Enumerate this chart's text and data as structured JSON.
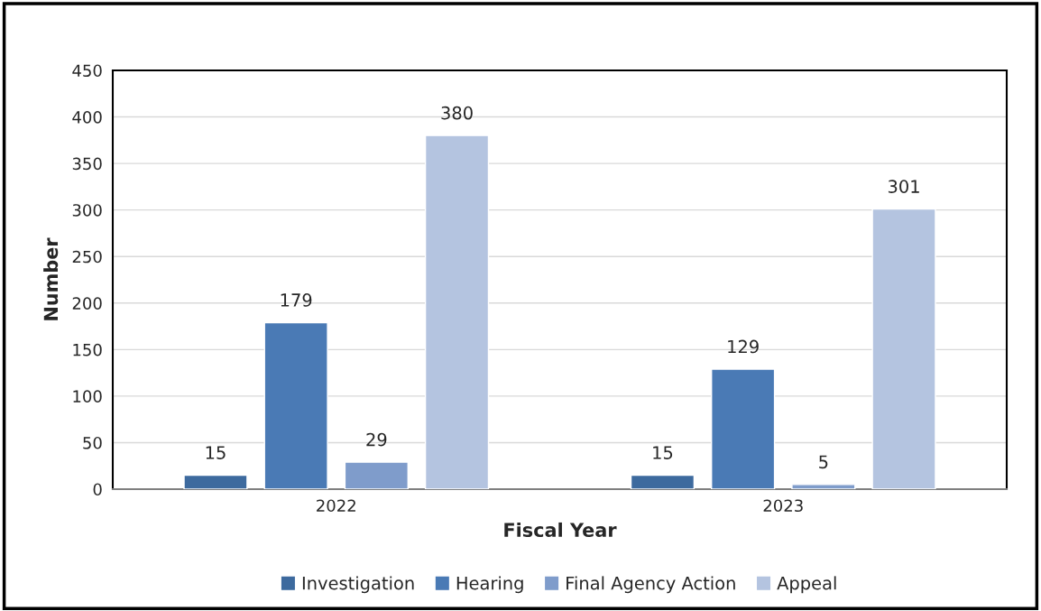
{
  "chart_data": {
    "type": "bar",
    "xlabel": "Fiscal Year",
    "ylabel": "Number",
    "categories": [
      "2022",
      "2023"
    ],
    "series": [
      {
        "name": "Investigation",
        "color": "#3d6a9e",
        "values": [
          15,
          15
        ]
      },
      {
        "name": "Hearing",
        "color": "#4a7ab5",
        "values": [
          179,
          129
        ]
      },
      {
        "name": "Final Agency Action",
        "color": "#7f9ccb",
        "values": [
          29,
          5
        ]
      },
      {
        "name": "Appeal",
        "color": "#b4c4e0",
        "values": [
          380,
          301
        ]
      }
    ],
    "ylim": [
      0,
      450
    ],
    "yticks": [
      0,
      50,
      100,
      150,
      200,
      250,
      300,
      350,
      400,
      450
    ],
    "grid": "y",
    "legend": "bottom",
    "data_labels": true
  }
}
